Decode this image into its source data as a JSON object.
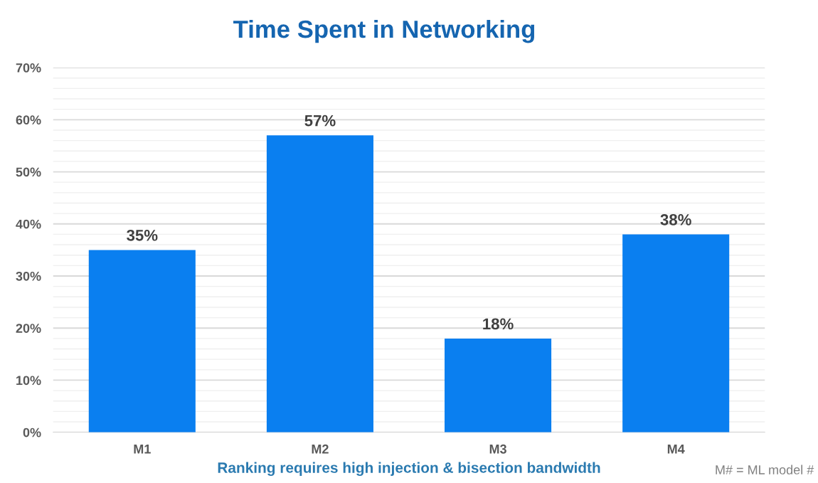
{
  "chart_data": {
    "type": "bar",
    "title": "Time Spent in Networking",
    "xlabel": "Ranking requires high injection & bisection bandwidth",
    "categories": [
      "M1",
      "M2",
      "M3",
      "M4"
    ],
    "values": [
      35,
      57,
      18,
      38
    ],
    "color": "#0a7ff0",
    "value_labels": [
      "35%",
      "57%",
      "18%",
      "38%"
    ],
    "ylim": [
      0,
      70
    ],
    "yticks": [
      {
        "value": 0,
        "label": "0%"
      },
      {
        "value": 2,
        "label": null
      },
      {
        "value": 4,
        "label": null
      },
      {
        "value": 6,
        "label": null
      },
      {
        "value": 8,
        "label": null
      },
      {
        "value": 10,
        "label": "10%"
      },
      {
        "value": 12,
        "label": null
      },
      {
        "value": 14,
        "label": null
      },
      {
        "value": 16,
        "label": null
      },
      {
        "value": 18,
        "label": null
      },
      {
        "value": 20,
        "label": "20%"
      },
      {
        "value": 22,
        "label": null
      },
      {
        "value": 24,
        "label": null
      },
      {
        "value": 26,
        "label": null
      },
      {
        "value": 28,
        "label": null
      },
      {
        "value": 30,
        "label": "30%"
      },
      {
        "value": 32,
        "label": null
      },
      {
        "value": 34,
        "label": null
      },
      {
        "value": 36,
        "label": null
      },
      {
        "value": 38,
        "label": null
      },
      {
        "value": 40,
        "label": "40%"
      },
      {
        "value": 42,
        "label": null
      },
      {
        "value": 44,
        "label": null
      },
      {
        "value": 46,
        "label": null
      },
      {
        "value": 48,
        "label": null
      },
      {
        "value": 50,
        "label": "50%"
      },
      {
        "value": 52,
        "label": null
      },
      {
        "value": 54,
        "label": null
      },
      {
        "value": 56,
        "label": null
      },
      {
        "value": 58,
        "label": null
      },
      {
        "value": 60,
        "label": "60%"
      },
      {
        "value": 62,
        "label": null
      },
      {
        "value": 64,
        "label": null
      },
      {
        "value": 66,
        "label": null
      },
      {
        "value": 68,
        "label": null
      },
      {
        "value": 70,
        "label": "70%"
      }
    ],
    "grid": "y",
    "annotations": [
      "M# = ML model #"
    ]
  }
}
